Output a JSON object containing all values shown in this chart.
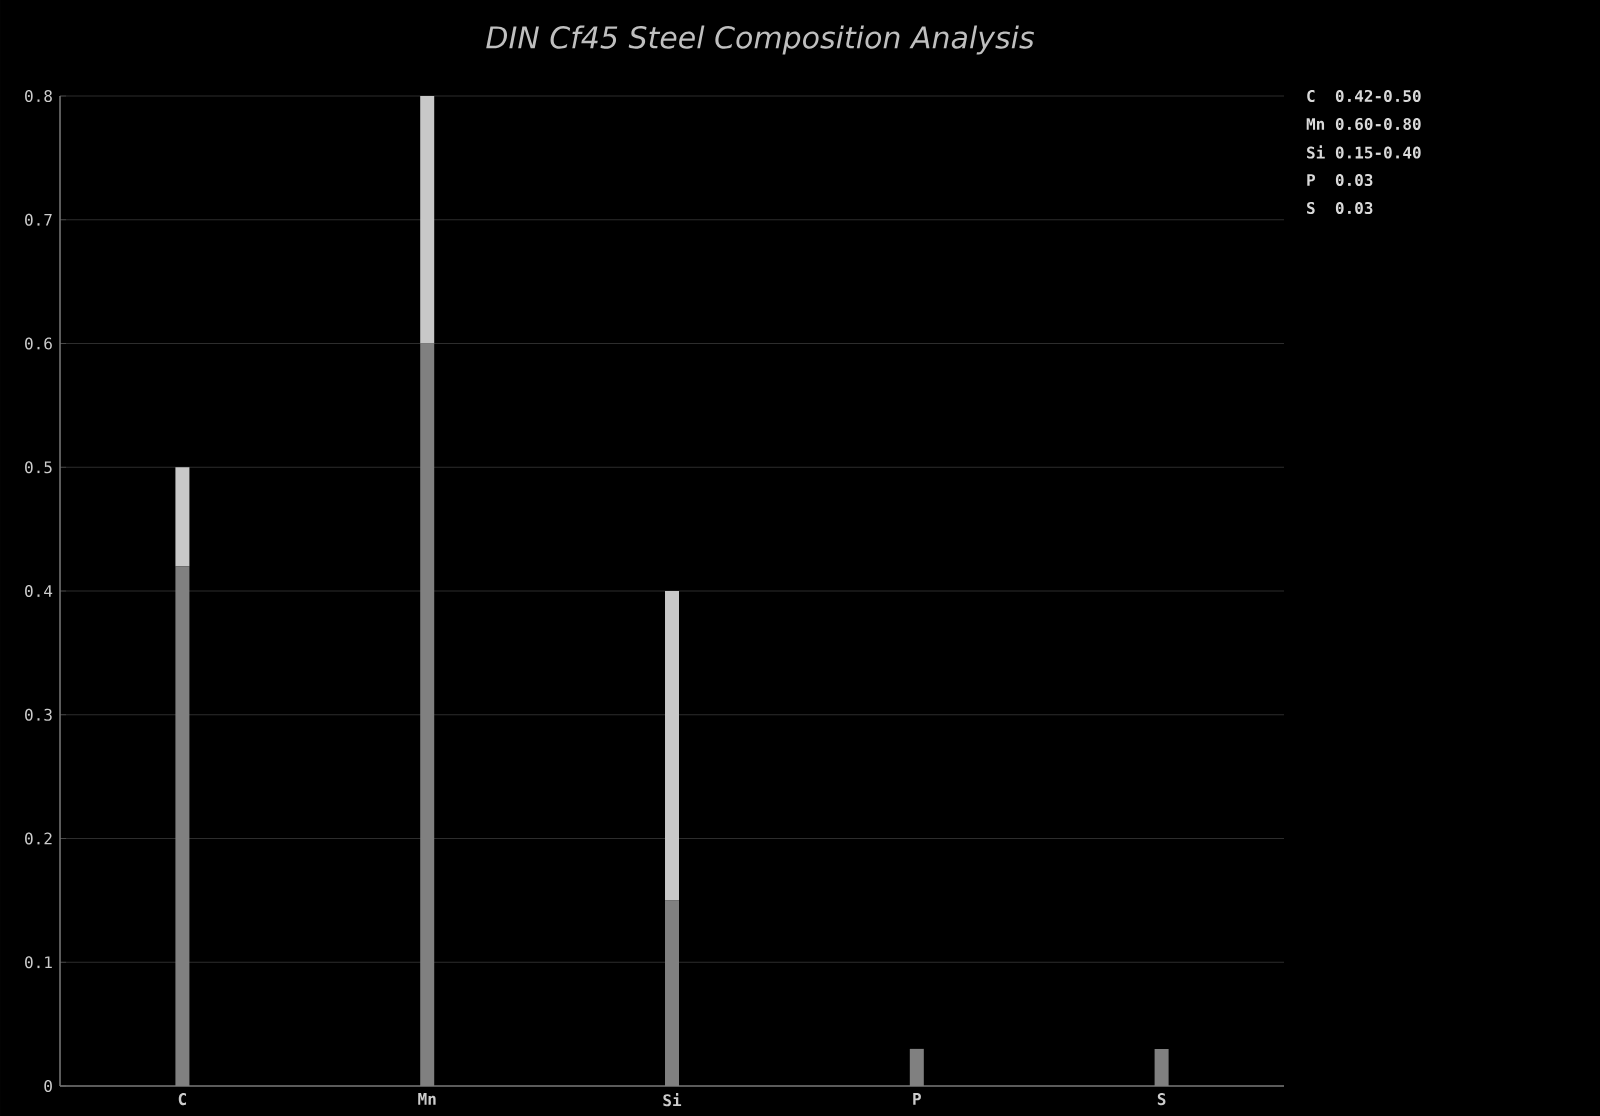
{
  "chart_data": {
    "type": "bar",
    "stacked": true,
    "title": "DIN Cf45 Steel Composition Analysis",
    "categories": [
      "C",
      "Mn",
      "Si",
      "P",
      "S"
    ],
    "series": [
      {
        "color": "#808080",
        "values": [
          0.42,
          0.6,
          0.15,
          0.03,
          0.03
        ]
      },
      {
        "color": "#c8c8c8",
        "values": [
          0.08,
          0.2,
          0.25,
          null,
          null
        ]
      }
    ],
    "ylim": [
      0,
      0.8
    ],
    "yticks": [
      0,
      0.1,
      0.2,
      0.3,
      0.4,
      0.5,
      0.6,
      0.7,
      0.8
    ],
    "grid": "y",
    "annotations": [
      "C  0.42-0.50",
      "Mn 0.60-0.80",
      "Si 0.15-0.40",
      "P  0.03",
      "S  0.03"
    ]
  }
}
